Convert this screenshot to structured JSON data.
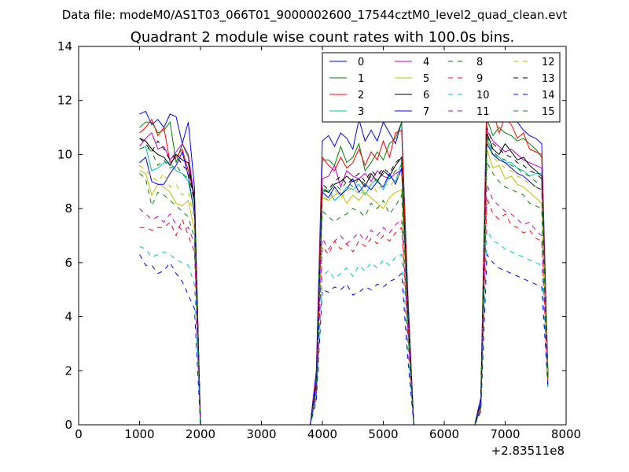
{
  "figure": {
    "suptitle": "Data file: modeM0/AS1T03_066T01_9000002600_17544cztM0_level2_quad_clean.evt"
  },
  "chart_data": {
    "type": "line",
    "title": "Quadrant 2 module wise count rates with 100.0s bins.",
    "xlabel": "",
    "ylabel": "",
    "xlim": [
      0,
      8000
    ],
    "ylim": [
      0,
      14
    ],
    "x_offset_label": "+2.83511e8",
    "x_ticks": [
      0,
      1000,
      2000,
      3000,
      4000,
      5000,
      6000,
      7000,
      8000
    ],
    "x_tick_labels": [
      "0",
      "1000",
      "2000",
      "3000",
      "4000",
      "5000",
      "6000",
      "7000",
      "8000"
    ],
    "y_ticks": [
      0,
      2,
      4,
      6,
      8,
      10,
      12,
      14
    ],
    "y_tick_labels": [
      "0",
      "2",
      "4",
      "6",
      "8",
      "10",
      "12",
      "14"
    ],
    "grid": false,
    "legend_position": "top-right",
    "x": [
      1000,
      1100,
      1200,
      1300,
      1400,
      1500,
      1600,
      1700,
      1800,
      1900,
      2000,
      3800,
      3900,
      4000,
      4100,
      4200,
      4300,
      4400,
      4500,
      4600,
      4700,
      4800,
      4900,
      5000,
      5100,
      5200,
      5300,
      5400,
      5500,
      6500,
      6600,
      6700,
      6800,
      6900,
      7000,
      7100,
      7200,
      7300,
      7400,
      7500,
      7600,
      7700
    ],
    "series": [
      {
        "name": "0",
        "color": "#0000ff",
        "style": "solid",
        "values": [
          11.5,
          11.6,
          11.1,
          11.3,
          11.0,
          11.5,
          11.4,
          10.4,
          11.2,
          8.8,
          0,
          0,
          2.0,
          10.5,
          10.7,
          10.3,
          10.8,
          10.6,
          10.2,
          11.3,
          10.5,
          10.9,
          10.5,
          11.2,
          10.8,
          10.4,
          11.2,
          5.0,
          0,
          0,
          1.0,
          12.4,
          12.1,
          11.9,
          11.4,
          11.6,
          11.2,
          10.9,
          10.7,
          10.6,
          10.4,
          2.0
        ]
      },
      {
        "name": "1",
        "color": "#008000",
        "style": "solid",
        "values": [
          11.0,
          11.2,
          11.2,
          10.8,
          10.9,
          11.2,
          9.7,
          10.4,
          9.9,
          8.2,
          0,
          0,
          1.6,
          9.8,
          9.8,
          9.6,
          10.3,
          9.7,
          9.9,
          10.4,
          9.4,
          9.7,
          10.1,
          9.8,
          10.4,
          10.6,
          11.2,
          4.5,
          0,
          0,
          0.8,
          11.3,
          10.7,
          11.0,
          10.8,
          10.7,
          10.5,
          10.6,
          10.4,
          10.2,
          9.9,
          1.9
        ]
      },
      {
        "name": "2",
        "color": "#ff0000",
        "style": "solid",
        "values": [
          10.8,
          11.0,
          11.3,
          10.7,
          11.0,
          9.7,
          9.9,
          10.2,
          9.4,
          8.5,
          0,
          0,
          1.7,
          9.9,
          9.6,
          9.4,
          9.9,
          9.5,
          9.7,
          10.2,
          9.6,
          10.1,
          9.8,
          10.5,
          9.9,
          10.8,
          10.9,
          4.6,
          0,
          0,
          0.8,
          12.2,
          11.6,
          10.8,
          11.4,
          11.1,
          10.6,
          10.8,
          10.2,
          10.1,
          10.0,
          1.8
        ]
      },
      {
        "name": "3",
        "color": "#00bfbf",
        "style": "solid",
        "values": [
          10.2,
          10.3,
          9.4,
          9.5,
          9.7,
          9.7,
          9.4,
          9.3,
          9.0,
          7.9,
          0,
          0,
          1.4,
          8.6,
          8.7,
          8.3,
          8.5,
          8.8,
          8.7,
          8.9,
          8.5,
          8.9,
          9.1,
          8.7,
          9.2,
          9.0,
          9.7,
          4.2,
          0,
          0,
          0.7,
          10.6,
          10.0,
          9.9,
          9.7,
          9.7,
          9.5,
          9.4,
          9.2,
          9.3,
          9.3,
          1.7
        ]
      },
      {
        "name": "4",
        "color": "#bf00bf",
        "style": "solid",
        "values": [
          10.3,
          10.6,
          10.8,
          10.2,
          10.3,
          9.8,
          10.1,
          10.4,
          10.0,
          8.4,
          0,
          0,
          1.5,
          9.1,
          9.2,
          9.6,
          8.8,
          9.4,
          9.2,
          9.1,
          9.3,
          9.0,
          9.4,
          9.2,
          9.1,
          9.3,
          9.4,
          4.4,
          0,
          0,
          0.8,
          10.9,
          10.5,
          10.3,
          10.1,
          10.2,
          10.0,
          9.8,
          9.7,
          9.6,
          9.5,
          1.8
        ]
      },
      {
        "name": "5",
        "color": "#bfbf00",
        "style": "solid",
        "values": [
          9.4,
          9.3,
          8.5,
          8.9,
          8.8,
          8.6,
          8.2,
          8.1,
          8.3,
          7.2,
          0,
          0,
          1.3,
          8.4,
          8.3,
          8.5,
          8.6,
          8.2,
          8.5,
          8.3,
          8.6,
          8.4,
          8.2,
          8.0,
          8.4,
          8.6,
          8.7,
          3.9,
          0,
          0,
          0.7,
          10.2,
          9.5,
          9.6,
          9.1,
          9.2,
          8.9,
          8.8,
          8.6,
          8.4,
          8.2,
          1.6
        ]
      },
      {
        "name": "6",
        "color": "#000000",
        "style": "solid",
        "values": [
          10.6,
          10.5,
          10.2,
          10.0,
          9.9,
          9.6,
          10.0,
          9.8,
          9.7,
          8.3,
          0,
          0,
          1.5,
          8.7,
          8.6,
          8.9,
          9.0,
          9.2,
          9.0,
          9.1,
          8.8,
          9.3,
          9.0,
          9.4,
          9.2,
          9.6,
          9.9,
          4.3,
          0,
          0,
          0.8,
          10.8,
          10.2,
          10.0,
          10.4,
          10.1,
          9.8,
          9.9,
          9.6,
          9.4,
          9.2,
          1.7
        ]
      },
      {
        "name": "7",
        "color": "#0000ff",
        "style": "solid",
        "values": [
          9.7,
          9.9,
          9.0,
          8.9,
          8.9,
          9.3,
          9.6,
          10.1,
          9.2,
          7.8,
          0,
          0,
          1.5,
          8.6,
          8.4,
          8.8,
          8.5,
          8.7,
          9.1,
          8.6,
          8.9,
          8.7,
          9.0,
          8.8,
          9.3,
          8.9,
          9.5,
          4.2,
          0,
          0,
          0.8,
          10.4,
          10.0,
          9.8,
          9.7,
          9.5,
          9.3,
          9.2,
          9.0,
          8.8,
          8.7,
          1.7
        ]
      },
      {
        "name": "8",
        "color": "#008000",
        "style": "dashed",
        "values": [
          9.3,
          9.1,
          8.1,
          8.6,
          8.5,
          8.3,
          8.1,
          7.9,
          7.7,
          6.9,
          0,
          0,
          1.3,
          7.9,
          7.7,
          7.5,
          7.7,
          7.8,
          8.0,
          7.9,
          7.7,
          8.2,
          8.0,
          8.3,
          7.8,
          8.1,
          8.5,
          3.8,
          0,
          0,
          0.7,
          9.7,
          9.3,
          9.0,
          8.8,
          8.7,
          8.6,
          8.5,
          8.2,
          8.1,
          8.0,
          1.6
        ]
      },
      {
        "name": "9",
        "color": "#ff0000",
        "style": "dashed",
        "values": [
          7.3,
          7.3,
          7.2,
          7.3,
          7.3,
          7.5,
          7.0,
          7.6,
          7.0,
          6.4,
          0,
          0,
          1.1,
          6.6,
          6.3,
          6.8,
          6.5,
          6.7,
          6.4,
          6.8,
          6.6,
          6.9,
          6.7,
          7.0,
          6.8,
          7.1,
          7.3,
          3.4,
          0,
          0,
          0.6,
          8.4,
          7.8,
          7.6,
          7.8,
          7.4,
          7.3,
          7.1,
          7.2,
          6.9,
          6.8,
          1.4
        ]
      },
      {
        "name": "10",
        "color": "#00bfbf",
        "style": "dashed",
        "values": [
          6.6,
          6.5,
          6.2,
          6.3,
          6.4,
          6.3,
          6.1,
          6.0,
          5.9,
          5.2,
          0,
          0,
          1.0,
          5.5,
          5.7,
          5.4,
          5.6,
          5.8,
          5.5,
          5.9,
          5.7,
          6.0,
          5.8,
          6.1,
          5.9,
          6.2,
          6.3,
          2.9,
          0,
          0,
          0.5,
          7.2,
          6.8,
          6.7,
          6.5,
          6.4,
          6.3,
          6.2,
          6.1,
          6.0,
          5.9,
          1.3
        ]
      },
      {
        "name": "11",
        "color": "#bf00bf",
        "style": "dashed",
        "values": [
          8.0,
          7.8,
          7.6,
          7.7,
          7.5,
          7.8,
          7.4,
          7.2,
          7.3,
          6.7,
          0,
          0,
          1.2,
          6.9,
          6.5,
          6.8,
          7.0,
          6.7,
          6.9,
          7.1,
          6.8,
          7.2,
          7.0,
          7.3,
          7.1,
          7.4,
          7.6,
          3.6,
          0,
          0,
          0.6,
          8.9,
          8.3,
          8.1,
          7.9,
          7.8,
          7.6,
          7.4,
          7.5,
          7.2,
          7.0,
          1.5
        ]
      },
      {
        "name": "12",
        "color": "#bfbf00",
        "style": "dashed",
        "values": [
          9.6,
          9.4,
          9.2,
          9.0,
          9.3,
          8.8,
          8.9,
          8.5,
          8.6,
          7.6,
          0,
          0,
          1.4,
          8.5,
          8.3,
          8.7,
          8.4,
          8.6,
          8.8,
          8.5,
          8.7,
          8.9,
          8.6,
          9.0,
          8.8,
          9.1,
          9.3,
          4.0,
          0,
          0,
          0.7,
          10.5,
          9.9,
          9.7,
          9.5,
          9.4,
          9.2,
          9.1,
          8.9,
          8.8,
          8.7,
          1.7
        ]
      },
      {
        "name": "13",
        "color": "#000000",
        "style": "dashed",
        "values": [
          10.6,
          10.4,
          10.1,
          10.5,
          10.2,
          9.8,
          10.0,
          9.6,
          9.4,
          8.2,
          0,
          0,
          1.5,
          8.9,
          8.7,
          9.0,
          9.2,
          8.9,
          9.1,
          9.3,
          9.0,
          9.4,
          9.2,
          9.5,
          9.3,
          9.7,
          9.9,
          4.3,
          0,
          0,
          0.8,
          11.0,
          10.4,
          10.2,
          10.0,
          9.9,
          9.7,
          9.6,
          9.4,
          9.3,
          9.1,
          1.8
        ]
      },
      {
        "name": "14",
        "color": "#0000ff",
        "style": "dashed",
        "values": [
          6.3,
          5.9,
          5.9,
          5.6,
          5.7,
          6.0,
          5.6,
          5.3,
          4.8,
          4.3,
          0,
          0,
          0.9,
          5.0,
          4.9,
          5.1,
          5.0,
          5.2,
          4.8,
          4.9,
          5.1,
          5.0,
          5.2,
          5.1,
          5.3,
          5.4,
          5.6,
          2.5,
          0,
          0,
          0.5,
          6.3,
          6.0,
          5.8,
          5.7,
          5.6,
          5.5,
          5.4,
          5.3,
          5.2,
          5.1,
          1.5
        ]
      },
      {
        "name": "15",
        "color": "#008000",
        "style": "dashed",
        "values": [
          10.2,
          10.3,
          10.1,
          9.6,
          9.8,
          9.5,
          9.6,
          9.3,
          9.1,
          7.9,
          0,
          0,
          1.4,
          8.8,
          8.6,
          8.9,
          8.7,
          9.0,
          8.8,
          9.1,
          8.9,
          9.2,
          9.0,
          9.3,
          9.1,
          9.4,
          9.6,
          4.1,
          0,
          0,
          0.7,
          10.7,
          10.1,
          9.9,
          9.8,
          9.6,
          9.5,
          9.3,
          9.2,
          9.0,
          8.9,
          1.7
        ]
      }
    ]
  }
}
